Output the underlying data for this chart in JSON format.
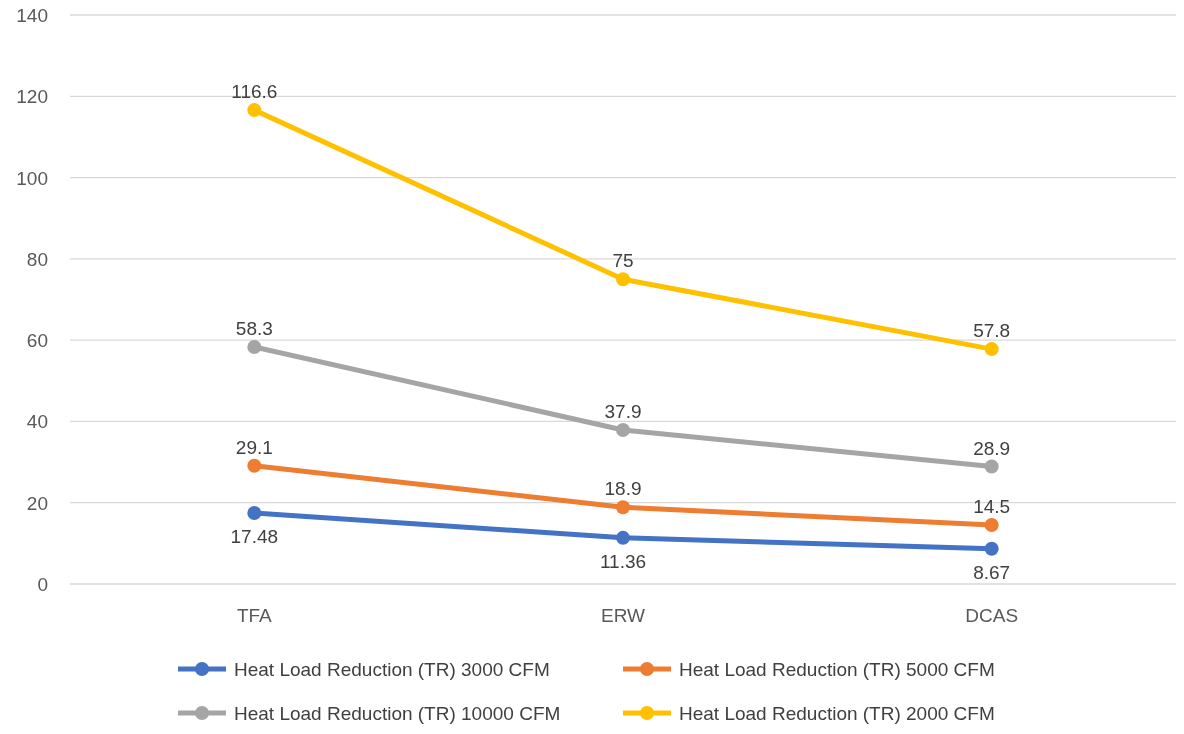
{
  "chart_data": {
    "type": "line",
    "categories": [
      "TFA",
      "ERW",
      "DCAS"
    ],
    "series": [
      {
        "name": "Heat Load Reduction (TR) 3000 CFM",
        "color": "#4472c4",
        "values": [
          17.48,
          11.36,
          8.67
        ]
      },
      {
        "name": "Heat Load Reduction (TR) 5000 CFM",
        "color": "#ed7d31",
        "values": [
          29.1,
          18.9,
          14.5
        ]
      },
      {
        "name": "Heat Load Reduction (TR) 10000 CFM",
        "color": "#a5a5a5",
        "values": [
          58.3,
          37.9,
          28.9
        ]
      },
      {
        "name": "Heat Load Reduction (TR) 2000 CFM",
        "color": "#ffc000",
        "values": [
          116.6,
          75,
          57.8
        ]
      }
    ],
    "ylim": [
      0,
      140
    ],
    "yticks": [
      0,
      20,
      40,
      60,
      80,
      100,
      120,
      140
    ],
    "grid": "y",
    "legend": "bottom",
    "marker": "circle",
    "line_style": "solid",
    "data_labels": true
  }
}
